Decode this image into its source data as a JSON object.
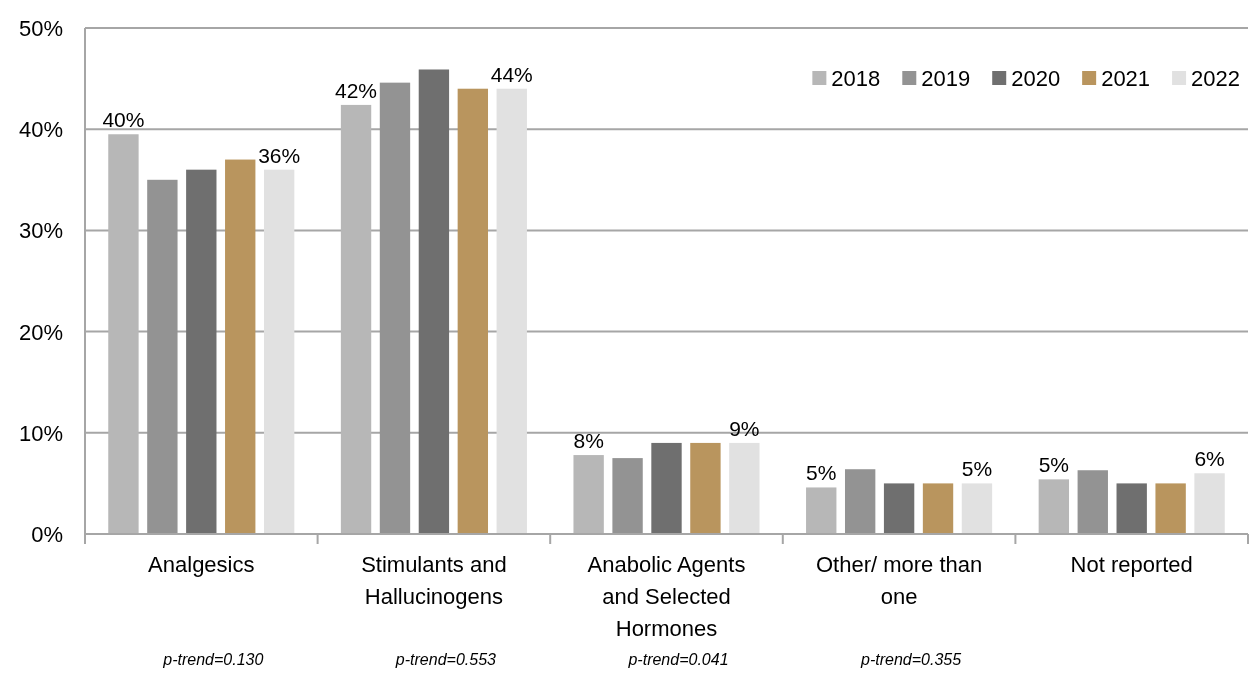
{
  "chart_data": {
    "type": "bar",
    "categories": [
      "Analgesics",
      "Stimulants and Hallucinogens",
      "Anabolic Agents and Selected Hormones",
      "Other/ more than one",
      "Not reported"
    ],
    "series": [
      {
        "name": "2018",
        "color": "#b7b7b7",
        "values": [
          39.5,
          42.4,
          7.8,
          4.6,
          5.4
        ],
        "value_labels": [
          "40%",
          "42%",
          "8%",
          "5%",
          "5%"
        ]
      },
      {
        "name": "2019",
        "color": "#939393",
        "values": [
          35,
          44.6,
          7.5,
          6.4,
          6.3
        ]
      },
      {
        "name": "2020",
        "color": "#6f6f6f",
        "values": [
          36,
          45.9,
          9,
          5,
          5
        ]
      },
      {
        "name": "2021",
        "color": "#b9955e",
        "values": [
          37,
          44,
          9,
          5,
          5
        ]
      },
      {
        "name": "2022",
        "color": "#e1e1e1",
        "values": [
          36,
          44,
          9,
          5,
          6
        ],
        "value_labels": [
          "36%",
          "44%",
          "9%",
          "5%",
          "6%"
        ]
      }
    ],
    "ylim": [
      0,
      50
    ],
    "yticks": [
      {
        "value": 0,
        "label": "0%"
      },
      {
        "value": 10,
        "label": "10%"
      },
      {
        "value": 20,
        "label": "20%"
      },
      {
        "value": 30,
        "label": "30%"
      },
      {
        "value": 40,
        "label": "40%"
      },
      {
        "value": 50,
        "label": "50%"
      }
    ],
    "grid": "y",
    "legend": "top right",
    "annotations": [
      "p-trend=0.130",
      "p-trend=0.553",
      "p-trend=0.041",
      "p-trend=0.355"
    ]
  }
}
